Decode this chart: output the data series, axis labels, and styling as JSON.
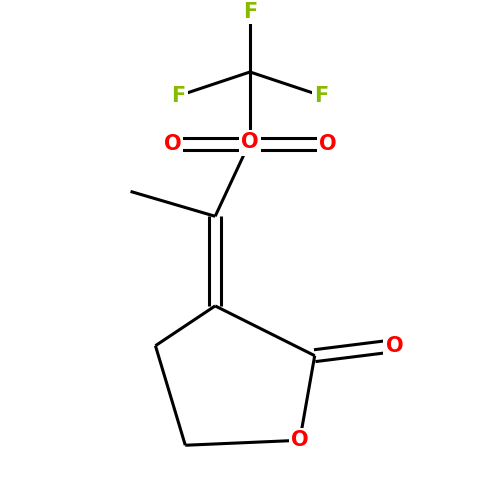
{
  "background_color": "#ffffff",
  "bond_color": "#000000",
  "bond_width": 2.2,
  "atom_colors": {
    "O": "#ff0000",
    "S": "#b8b800",
    "F": "#88bb00"
  },
  "figsize": [
    5.0,
    5.0
  ],
  "dpi": 100
}
